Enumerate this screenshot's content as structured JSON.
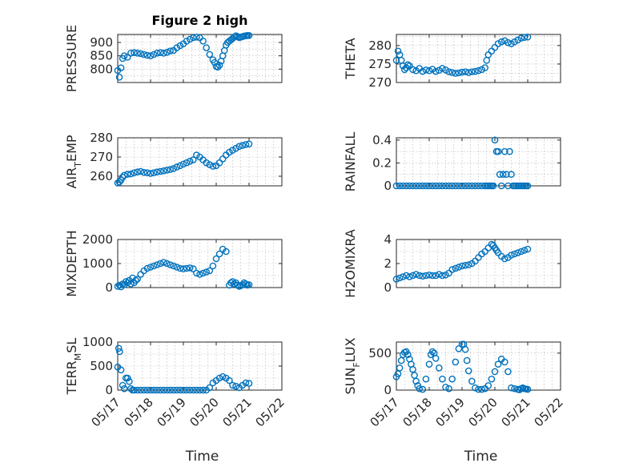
{
  "figure": {
    "title": "Figure 2 high",
    "xlabel": "Time",
    "marker_color": "#0072BD"
  },
  "chart_data": [
    {
      "type": "scatter",
      "title": "Figure 2 high",
      "ylabel": "PRESSURE",
      "ylabel_sub": "",
      "ylabel_tail": "",
      "xlim": [
        0,
        5
      ],
      "ylim": [
        750,
        930
      ],
      "yticks": [
        800,
        850,
        900
      ],
      "xticks": [
        0,
        1,
        2,
        3,
        4,
        5
      ],
      "xticklabels": [
        "",
        "",
        "",
        "",
        "",
        ""
      ],
      "x": [
        0.0,
        0.05,
        0.1,
        0.15,
        0.2,
        0.3,
        0.4,
        0.5,
        0.6,
        0.7,
        0.8,
        0.9,
        1.0,
        1.1,
        1.2,
        1.3,
        1.4,
        1.5,
        1.6,
        1.7,
        1.8,
        1.9,
        2.0,
        2.1,
        2.2,
        2.3,
        2.4,
        2.5,
        2.6,
        2.7,
        2.8,
        2.9,
        2.95,
        3.0,
        3.05,
        3.1,
        3.15,
        3.2,
        3.25,
        3.3,
        3.35,
        3.4,
        3.45,
        3.5,
        3.55,
        3.6,
        3.65,
        3.7,
        3.75,
        3.8,
        3.85,
        3.9,
        3.95,
        4.0
      ],
      "y": [
        795,
        770,
        805,
        840,
        850,
        845,
        860,
        862,
        860,
        858,
        855,
        852,
        850,
        855,
        860,
        862,
        860,
        863,
        868,
        870,
        880,
        888,
        895,
        905,
        912,
        918,
        920,
        918,
        905,
        880,
        855,
        835,
        825,
        810,
        808,
        815,
        830,
        850,
        870,
        890,
        900,
        905,
        910,
        915,
        920,
        925,
        922,
        918,
        920,
        922,
        924,
        925,
        926,
        926
      ]
    },
    {
      "type": "scatter",
      "title": "",
      "ylabel": "THETA",
      "ylabel_sub": "",
      "ylabel_tail": "",
      "xlim": [
        0,
        5
      ],
      "ylim": [
        270,
        283
      ],
      "yticks": [
        270,
        275,
        280
      ],
      "xticks": [
        0,
        1,
        2,
        3,
        4,
        5
      ],
      "xticklabels": [
        "",
        "",
        "",
        "",
        "",
        ""
      ],
      "x": [
        0.0,
        0.05,
        0.1,
        0.15,
        0.2,
        0.25,
        0.3,
        0.35,
        0.4,
        0.5,
        0.6,
        0.7,
        0.8,
        0.9,
        1.0,
        1.1,
        1.2,
        1.3,
        1.4,
        1.5,
        1.6,
        1.7,
        1.8,
        1.9,
        2.0,
        2.1,
        2.2,
        2.3,
        2.4,
        2.5,
        2.6,
        2.7,
        2.75,
        2.8,
        2.9,
        3.0,
        3.1,
        3.2,
        3.3,
        3.4,
        3.5,
        3.6,
        3.7,
        3.8,
        3.9,
        4.0
      ],
      "y": [
        276,
        278.5,
        277.5,
        276,
        274.5,
        273.5,
        274,
        274.8,
        274.5,
        273.5,
        273.2,
        273.8,
        273,
        273.4,
        273.2,
        273.6,
        273,
        273.3,
        273.8,
        273.4,
        272.9,
        272.7,
        272.5,
        272.6,
        272.8,
        272.9,
        272.7,
        272.9,
        273,
        273.2,
        273.5,
        274,
        276,
        277.5,
        278.5,
        279.5,
        280.5,
        281,
        281.3,
        280.8,
        280.5,
        281,
        281.5,
        282,
        282.2,
        282.3
      ]
    },
    {
      "type": "scatter",
      "title": "",
      "ylabel": "AIR",
      "ylabel_sub": "T",
      "ylabel_tail": "EMP",
      "xlim": [
        0,
        5
      ],
      "ylim": [
        255,
        280
      ],
      "yticks": [
        260,
        270,
        280
      ],
      "xticks": [
        0,
        1,
        2,
        3,
        4,
        5
      ],
      "xticklabels": [
        "",
        "",
        "",
        "",
        "",
        ""
      ],
      "x": [
        0.0,
        0.05,
        0.1,
        0.15,
        0.2,
        0.3,
        0.4,
        0.5,
        0.6,
        0.7,
        0.8,
        0.9,
        1.0,
        1.1,
        1.2,
        1.3,
        1.4,
        1.5,
        1.6,
        1.7,
        1.8,
        1.9,
        2.0,
        2.1,
        2.2,
        2.3,
        2.4,
        2.5,
        2.6,
        2.7,
        2.8,
        2.9,
        3.0,
        3.1,
        3.2,
        3.3,
        3.4,
        3.5,
        3.6,
        3.7,
        3.8,
        3.9,
        4.0
      ],
      "y": [
        256.5,
        257,
        258,
        259.5,
        260.5,
        261,
        261.2,
        261.8,
        262.2,
        262.5,
        262,
        261.8,
        261.5,
        261.8,
        262.2,
        262.5,
        262.8,
        263.2,
        263.5,
        264,
        264.8,
        265.5,
        266.3,
        267,
        267.8,
        268.5,
        271,
        270,
        268.5,
        267,
        266,
        265.2,
        265.5,
        267,
        269,
        271,
        272.5,
        273.5,
        274.5,
        275.5,
        276,
        276.5,
        276.8
      ]
    },
    {
      "type": "scatter",
      "title": "",
      "ylabel": "RAINFALL",
      "ylabel_sub": "",
      "ylabel_tail": "",
      "xlim": [
        0,
        5
      ],
      "ylim": [
        0,
        0.42
      ],
      "yticks": [
        0,
        0.2,
        0.4
      ],
      "xticks": [
        0,
        1,
        2,
        3,
        4,
        5
      ],
      "xticklabels": [
        "",
        "",
        "",
        "",
        "",
        ""
      ],
      "x": [
        0.0,
        0.1,
        0.2,
        0.3,
        0.4,
        0.5,
        0.6,
        0.7,
        0.8,
        0.9,
        1.0,
        1.1,
        1.2,
        1.3,
        1.4,
        1.5,
        1.6,
        1.7,
        1.8,
        1.9,
        2.0,
        2.1,
        2.2,
        2.3,
        2.4,
        2.5,
        2.6,
        2.7,
        2.75,
        2.8,
        2.85,
        2.9,
        2.95,
        3.0,
        3.05,
        3.1,
        3.15,
        3.2,
        3.25,
        3.3,
        3.35,
        3.4,
        3.45,
        3.5,
        3.55,
        3.6,
        3.65,
        3.7,
        3.75,
        3.8,
        3.85,
        3.9,
        3.95,
        4.0
      ],
      "y": [
        0,
        0,
        0,
        0,
        0,
        0,
        0,
        0,
        0,
        0,
        0,
        0,
        0,
        0,
        0,
        0,
        0,
        0,
        0,
        0,
        0,
        0,
        0,
        0,
        0,
        0,
        0,
        0,
        0,
        0,
        0,
        0,
        0,
        0.4,
        0.3,
        0.3,
        0.1,
        0,
        0.1,
        0.3,
        0.1,
        0,
        0.3,
        0.1,
        0,
        0,
        0,
        0,
        0,
        0,
        0,
        0,
        0,
        0
      ]
    },
    {
      "type": "scatter",
      "title": "",
      "ylabel": "MIXDEPTH",
      "ylabel_sub": "",
      "ylabel_tail": "",
      "xlim": [
        0,
        5
      ],
      "ylim": [
        0,
        2000
      ],
      "yticks": [
        0,
        1000,
        2000
      ],
      "xticks": [
        0,
        1,
        2,
        3,
        4,
        5
      ],
      "xticklabels": [
        "",
        "",
        "",
        "",
        "",
        ""
      ],
      "x": [
        0.0,
        0.05,
        0.1,
        0.15,
        0.2,
        0.25,
        0.3,
        0.35,
        0.4,
        0.45,
        0.5,
        0.55,
        0.6,
        0.7,
        0.8,
        0.9,
        1.0,
        1.1,
        1.2,
        1.3,
        1.4,
        1.5,
        1.6,
        1.7,
        1.8,
        1.9,
        2.0,
        2.1,
        2.2,
        2.3,
        2.4,
        2.5,
        2.6,
        2.7,
        2.8,
        2.9,
        3.0,
        3.1,
        3.2,
        3.3,
        3.4,
        3.45,
        3.5,
        3.55,
        3.6,
        3.65,
        3.7,
        3.75,
        3.8,
        3.85,
        3.9,
        3.95,
        4.0
      ],
      "y": [
        50,
        100,
        30,
        150,
        120,
        250,
        200,
        300,
        150,
        400,
        200,
        300,
        350,
        550,
        700,
        800,
        850,
        900,
        950,
        1000,
        1050,
        1000,
        950,
        900,
        850,
        800,
        780,
        800,
        820,
        780,
        600,
        550,
        600,
        650,
        700,
        900,
        1200,
        1400,
        1600,
        1500,
        100,
        200,
        250,
        150,
        200,
        100,
        50,
        80,
        120,
        200,
        150,
        100,
        120
      ]
    },
    {
      "type": "scatter",
      "title": "",
      "ylabel": "H2OMIXRA",
      "ylabel_sub": "",
      "ylabel_tail": "",
      "xlim": [
        0,
        5
      ],
      "ylim": [
        0,
        4
      ],
      "yticks": [
        0,
        2,
        4
      ],
      "xticks": [
        0,
        1,
        2,
        3,
        4,
        5
      ],
      "xticklabels": [
        "",
        "",
        "",
        "",
        "",
        ""
      ],
      "x": [
        0.0,
        0.1,
        0.2,
        0.3,
        0.4,
        0.5,
        0.6,
        0.7,
        0.8,
        0.9,
        1.0,
        1.1,
        1.2,
        1.3,
        1.4,
        1.5,
        1.6,
        1.7,
        1.8,
        1.9,
        2.0,
        2.1,
        2.2,
        2.3,
        2.4,
        2.5,
        2.6,
        2.7,
        2.8,
        2.9,
        2.95,
        3.0,
        3.05,
        3.1,
        3.2,
        3.3,
        3.4,
        3.5,
        3.6,
        3.7,
        3.8,
        3.9,
        4.0
      ],
      "y": [
        0.7,
        0.8,
        0.9,
        1.0,
        0.9,
        1.0,
        1.1,
        1.0,
        0.95,
        1.0,
        1.05,
        1.0,
        1.0,
        1.1,
        1.0,
        1.05,
        1.2,
        1.5,
        1.6,
        1.7,
        1.8,
        1.85,
        1.9,
        2.0,
        2.2,
        2.5,
        2.8,
        3.0,
        3.3,
        3.6,
        3.5,
        3.3,
        3.1,
        2.9,
        2.6,
        2.4,
        2.5,
        2.7,
        2.8,
        2.9,
        3.0,
        3.1,
        3.2
      ]
    },
    {
      "type": "scatter",
      "title": "",
      "ylabel": "TERR",
      "ylabel_sub": "M",
      "ylabel_tail": "SL",
      "xlim": [
        0,
        5
      ],
      "ylim": [
        0,
        1000
      ],
      "yticks": [
        0,
        500,
        1000
      ],
      "xticks": [
        0,
        1,
        2,
        3,
        4,
        5
      ],
      "xticklabels": [
        "05/17",
        "05/18",
        "05/19",
        "05/20",
        "05/21",
        "05/22"
      ],
      "x": [
        0.0,
        0.03,
        0.06,
        0.1,
        0.15,
        0.2,
        0.25,
        0.3,
        0.35,
        0.4,
        0.45,
        0.5,
        0.6,
        0.7,
        0.8,
        0.9,
        1.0,
        1.1,
        1.2,
        1.3,
        1.4,
        1.5,
        1.6,
        1.7,
        1.8,
        1.9,
        2.0,
        2.1,
        2.2,
        2.3,
        2.4,
        2.5,
        2.6,
        2.7,
        2.8,
        2.9,
        3.0,
        3.1,
        3.2,
        3.3,
        3.4,
        3.5,
        3.6,
        3.7,
        3.8,
        3.9,
        4.0
      ],
      "y": [
        480,
        870,
        800,
        420,
        100,
        30,
        250,
        250,
        180,
        30,
        0,
        0,
        0,
        0,
        0,
        0,
        0,
        0,
        0,
        0,
        0,
        0,
        0,
        0,
        0,
        0,
        0,
        0,
        0,
        0,
        0,
        0,
        0,
        0,
        50,
        150,
        200,
        250,
        280,
        250,
        200,
        100,
        80,
        50,
        100,
        150,
        140
      ]
    },
    {
      "type": "scatter",
      "title": "",
      "ylabel": "SUN",
      "ylabel_sub": "F",
      "ylabel_tail": "LUX",
      "xlim": [
        0,
        5
      ],
      "ylim": [
        0,
        650
      ],
      "yticks": [
        0,
        500
      ],
      "xticks": [
        0,
        1,
        2,
        3,
        4,
        5
      ],
      "xticklabels": [
        "05/17",
        "05/18",
        "05/19",
        "05/20",
        "05/21",
        "05/22"
      ],
      "x": [
        0.0,
        0.05,
        0.1,
        0.15,
        0.2,
        0.25,
        0.3,
        0.35,
        0.4,
        0.45,
        0.5,
        0.55,
        0.6,
        0.65,
        0.7,
        0.8,
        0.9,
        1.0,
        1.05,
        1.1,
        1.15,
        1.2,
        1.3,
        1.4,
        1.5,
        1.6,
        1.7,
        1.8,
        1.9,
        2.0,
        2.05,
        2.1,
        2.15,
        2.2,
        2.3,
        2.4,
        2.5,
        2.6,
        2.7,
        2.8,
        2.9,
        3.0,
        3.1,
        3.2,
        3.3,
        3.4,
        3.5,
        3.6,
        3.7,
        3.75,
        3.8,
        3.85,
        3.9,
        3.95,
        4.0
      ],
      "y": [
        180,
        220,
        300,
        400,
        480,
        510,
        520,
        480,
        420,
        350,
        280,
        200,
        120,
        60,
        20,
        10,
        150,
        350,
        480,
        520,
        500,
        430,
        300,
        150,
        40,
        20,
        150,
        380,
        560,
        620,
        620,
        550,
        400,
        260,
        120,
        30,
        10,
        10,
        20,
        60,
        150,
        250,
        350,
        420,
        380,
        250,
        30,
        20,
        10,
        5,
        20,
        30,
        20,
        15,
        10
      ]
    }
  ]
}
